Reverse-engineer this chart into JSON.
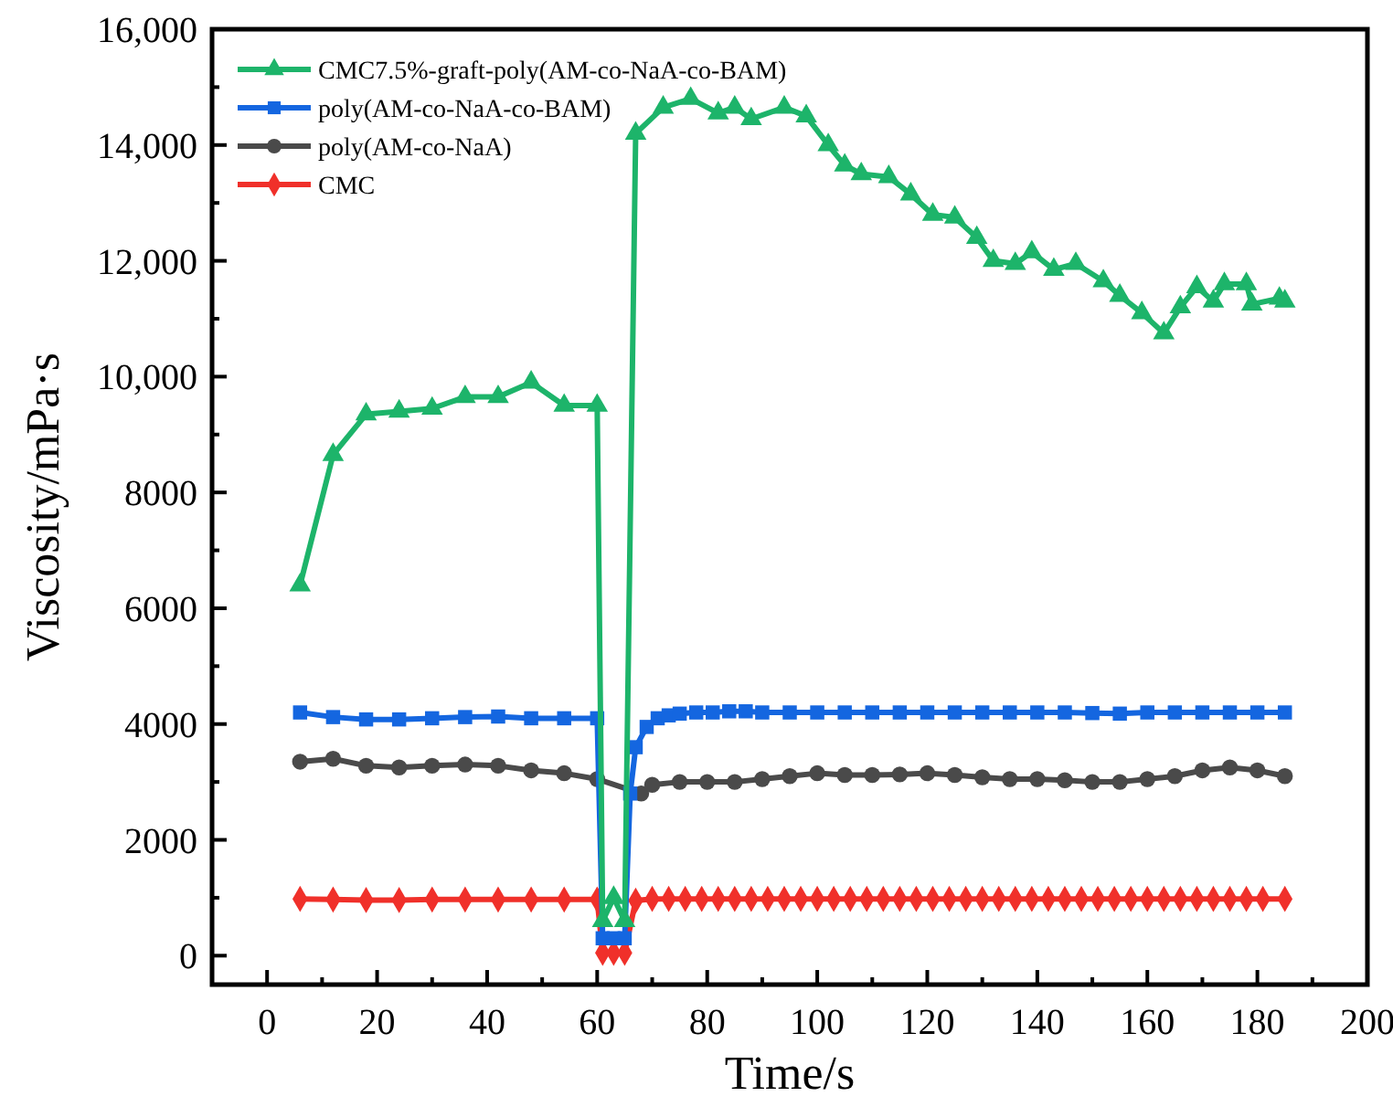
{
  "chart_data": {
    "type": "line",
    "xlabel": "Time/s",
    "ylabel": "Viscosity/mPa·s",
    "xlim": [
      -10,
      200
    ],
    "ylim": [
      -500,
      16000
    ],
    "xticks": [
      0,
      {
        "value": 10,
        "label": null
      },
      20,
      {
        "value": 30,
        "label": null
      },
      40,
      {
        "value": 50,
        "label": null
      },
      60,
      {
        "value": 70,
        "label": null
      },
      80,
      {
        "value": 90,
        "label": null
      },
      100,
      {
        "value": 110,
        "label": null
      },
      120,
      {
        "value": 130,
        "label": null
      },
      140,
      {
        "value": 150,
        "label": null
      },
      160,
      {
        "value": 170,
        "label": null
      },
      180,
      {
        "value": 190,
        "label": null
      },
      200
    ],
    "yticks": [
      0,
      {
        "value": 1000,
        "label": null
      },
      2000,
      {
        "value": 3000,
        "label": null
      },
      4000,
      {
        "value": 5000,
        "label": null
      },
      6000,
      {
        "value": 7000,
        "label": null
      },
      8000,
      {
        "value": 9000,
        "label": null
      },
      {
        "value": 10000,
        "label": "10,000"
      },
      {
        "value": 11000,
        "label": null
      },
      {
        "value": 12000,
        "label": "12,000"
      },
      {
        "value": 13000,
        "label": null
      },
      {
        "value": 14000,
        "label": "14,000"
      },
      {
        "value": 15000,
        "label": null
      },
      {
        "value": 16000,
        "label": "16,000"
      }
    ],
    "legend": "top left",
    "grid": false,
    "line_style": "solid",
    "series": [
      {
        "name": "CMC7.5%-graft-poly(AM-co-NaA-co-BAM)",
        "color": "#1db46a",
        "marker": "triangle",
        "x": [
          6,
          12,
          18,
          24,
          30,
          36,
          42,
          48,
          54,
          60,
          61,
          63,
          65,
          67,
          72,
          77,
          82,
          85,
          88,
          94,
          98,
          102,
          105,
          108,
          113,
          117,
          121,
          125,
          129,
          132,
          136,
          139,
          143,
          147,
          152,
          155,
          159,
          163,
          166,
          169,
          172,
          174,
          178,
          179,
          184,
          185
        ],
        "values": [
          6400,
          8650,
          9350,
          9400,
          9450,
          9650,
          9650,
          9900,
          9500,
          9500,
          600,
          1000,
          600,
          14200,
          14650,
          14800,
          14550,
          14650,
          14450,
          14650,
          14500,
          14000,
          13650,
          13500,
          13450,
          13150,
          12800,
          12750,
          12400,
          12000,
          11950,
          12150,
          11850,
          11950,
          11650,
          11400,
          11100,
          10750,
          11200,
          11550,
          11300,
          11600,
          11600,
          11250,
          11350,
          11300
        ]
      },
      {
        "name": "poly(AM-co-NaA-co-BAM)",
        "color": "#1466e0",
        "marker": "square",
        "x": [
          6,
          12,
          18,
          24,
          30,
          36,
          42,
          48,
          54,
          60,
          61,
          63,
          65,
          66,
          67,
          69,
          71,
          73,
          75,
          78,
          81,
          84,
          87,
          90,
          95,
          100,
          105,
          110,
          115,
          120,
          125,
          130,
          135,
          140,
          145,
          150,
          155,
          160,
          165,
          170,
          175,
          180,
          185
        ],
        "values": [
          4200,
          4120,
          4080,
          4080,
          4100,
          4120,
          4130,
          4100,
          4100,
          4100,
          300,
          300,
          300,
          2800,
          3600,
          3950,
          4100,
          4150,
          4180,
          4200,
          4200,
          4220,
          4220,
          4200,
          4200,
          4200,
          4200,
          4200,
          4200,
          4200,
          4200,
          4200,
          4200,
          4200,
          4200,
          4190,
          4180,
          4200,
          4200,
          4200,
          4200,
          4200,
          4200
        ]
      },
      {
        "name": "poly(AM-co-NaA)",
        "color": "#4a4a4a",
        "marker": "circle",
        "x": [
          6,
          12,
          18,
          24,
          30,
          36,
          42,
          48,
          54,
          60,
          61,
          63,
          65,
          66,
          68,
          70,
          75,
          80,
          85,
          90,
          95,
          100,
          105,
          110,
          115,
          120,
          125,
          130,
          135,
          140,
          145,
          150,
          155,
          160,
          165,
          170,
          175,
          180,
          185
        ],
        "values": [
          3350,
          3400,
          3280,
          3250,
          3280,
          3300,
          3280,
          3200,
          3150,
          3050,
          null,
          null,
          null,
          null,
          2800,
          2950,
          3000,
          3000,
          3000,
          3050,
          3100,
          3150,
          3120,
          3120,
          3130,
          3150,
          3120,
          3080,
          3050,
          3050,
          3030,
          3000,
          3000,
          3050,
          3100,
          3200,
          3250,
          3200,
          3100
        ]
      },
      {
        "name": "CMC",
        "color": "#f0302a",
        "marker": "diamond",
        "x": [
          6,
          12,
          18,
          24,
          30,
          36,
          42,
          48,
          54,
          60,
          61,
          63,
          65,
          67,
          70,
          73,
          76,
          79,
          82,
          85,
          88,
          91,
          94,
          97,
          100,
          103,
          106,
          109,
          112,
          115,
          118,
          121,
          124,
          127,
          130,
          133,
          136,
          139,
          142,
          145,
          148,
          151,
          154,
          157,
          160,
          163,
          166,
          169,
          172,
          175,
          178,
          181,
          185
        ],
        "values": [
          980,
          970,
          960,
          960,
          970,
          970,
          970,
          970,
          970,
          970,
          50,
          50,
          50,
          950,
          980,
          980,
          980,
          980,
          980,
          980,
          980,
          980,
          980,
          980,
          980,
          980,
          980,
          980,
          980,
          980,
          980,
          980,
          980,
          980,
          980,
          980,
          980,
          980,
          980,
          980,
          980,
          980,
          980,
          980,
          980,
          980,
          980,
          980,
          980,
          980,
          980,
          980,
          980
        ]
      }
    ]
  }
}
